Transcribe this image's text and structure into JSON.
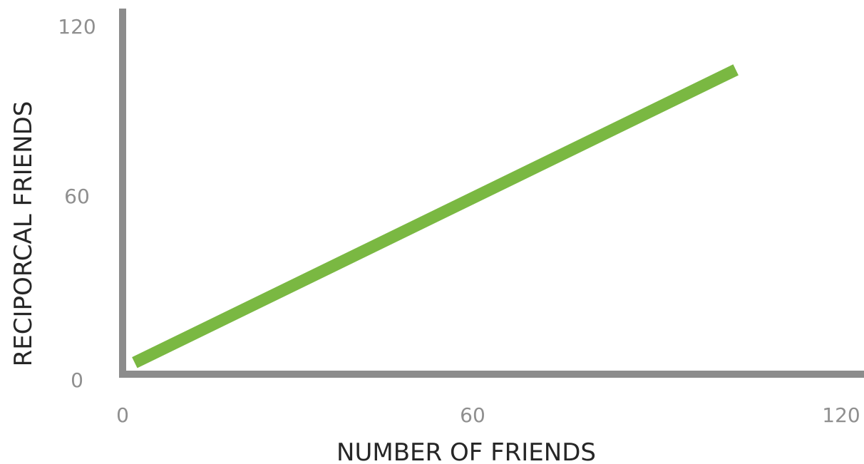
{
  "colors": {
    "axis": "#8c8c8c",
    "line": "#7ab842",
    "tick_text": "#8f8f8f",
    "title_text": "#262626",
    "background": "#ffffff"
  },
  "chart_data": {
    "type": "line",
    "title": "",
    "xlabel": "NUMBER OF FRIENDS",
    "ylabel": "RECIPORCAL FRIENDS",
    "xlim": [
      0,
      120
    ],
    "ylim": [
      0,
      120
    ],
    "x_ticks": [
      "0",
      "60",
      "120"
    ],
    "y_ticks": [
      "0",
      "60",
      "120"
    ],
    "grid": false,
    "legend": "none",
    "series": [
      {
        "x": [
          2,
          102
        ],
        "y": [
          2,
          102
        ]
      }
    ]
  }
}
